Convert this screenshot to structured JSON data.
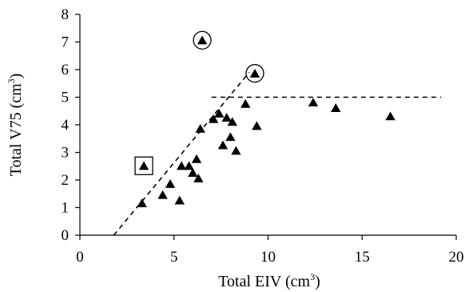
{
  "chart_data": {
    "type": "scatter",
    "xlabel": "Total EIV (cm",
    "xlabel_sup": "3",
    "xlabel_close": ")",
    "ylabel": "Total V75 (cm",
    "ylabel_sup": "3",
    "ylabel_close": ")",
    "xlim": [
      0,
      20
    ],
    "ylim": [
      0,
      8
    ],
    "x_ticks": [
      0,
      5,
      10,
      15,
      20
    ],
    "y_ticks": [
      0,
      1,
      2,
      3,
      4,
      5,
      6,
      7,
      8
    ],
    "grid": false,
    "marker": "filled-triangle",
    "marker_color": "#000000",
    "points": [
      {
        "x": 3.3,
        "y": 1.15
      },
      {
        "x": 4.4,
        "y": 1.45
      },
      {
        "x": 4.8,
        "y": 1.85
      },
      {
        "x": 5.3,
        "y": 1.25
      },
      {
        "x": 5.4,
        "y": 2.5
      },
      {
        "x": 5.8,
        "y": 2.5
      },
      {
        "x": 6.0,
        "y": 2.25
      },
      {
        "x": 6.2,
        "y": 2.75
      },
      {
        "x": 6.3,
        "y": 2.05
      },
      {
        "x": 6.4,
        "y": 3.85
      },
      {
        "x": 7.1,
        "y": 4.2
      },
      {
        "x": 7.4,
        "y": 4.4
      },
      {
        "x": 7.6,
        "y": 3.25
      },
      {
        "x": 7.8,
        "y": 4.25
      },
      {
        "x": 8.0,
        "y": 3.55
      },
      {
        "x": 8.1,
        "y": 4.1
      },
      {
        "x": 8.3,
        "y": 3.05
      },
      {
        "x": 8.8,
        "y": 4.75
      },
      {
        "x": 9.4,
        "y": 3.95
      },
      {
        "x": 12.4,
        "y": 4.8
      },
      {
        "x": 13.6,
        "y": 4.6
      },
      {
        "x": 16.5,
        "y": 4.3
      },
      {
        "x": 3.4,
        "y": 2.5,
        "highlight": "square"
      },
      {
        "x": 6.5,
        "y": 7.05,
        "highlight": "circle"
      },
      {
        "x": 9.3,
        "y": 5.85,
        "highlight": "circle"
      }
    ],
    "reference_lines": [
      {
        "style": "dashed",
        "x1": 1.8,
        "y1": 0,
        "x2": 9.0,
        "y2": 5.9
      },
      {
        "style": "dashed",
        "x1": 7.0,
        "y1": 5.0,
        "x2": 19.2,
        "y2": 5.0
      }
    ]
  }
}
